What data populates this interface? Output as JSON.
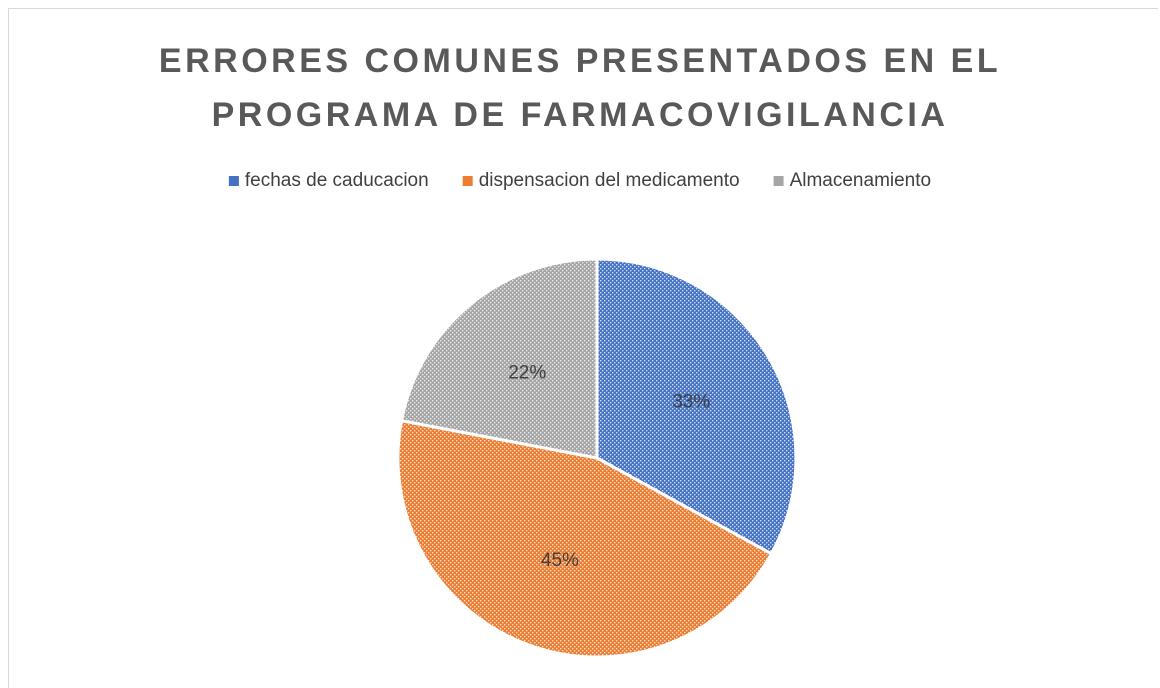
{
  "chart_data": {
    "type": "pie",
    "title": "ERRORES COMUNES PRESENTADOS EN EL PROGRAMA DE FARMACOVIGILANCIA",
    "categories": [
      "fechas de caducacion",
      "dispensacion del medicamento",
      "Almacenamiento"
    ],
    "values": [
      33,
      45,
      22
    ],
    "value_labels": [
      "33%",
      "45%",
      "22%"
    ],
    "colors": [
      "#4472c4",
      "#ed7d31",
      "#a5a5a5"
    ],
    "legend": "top"
  }
}
